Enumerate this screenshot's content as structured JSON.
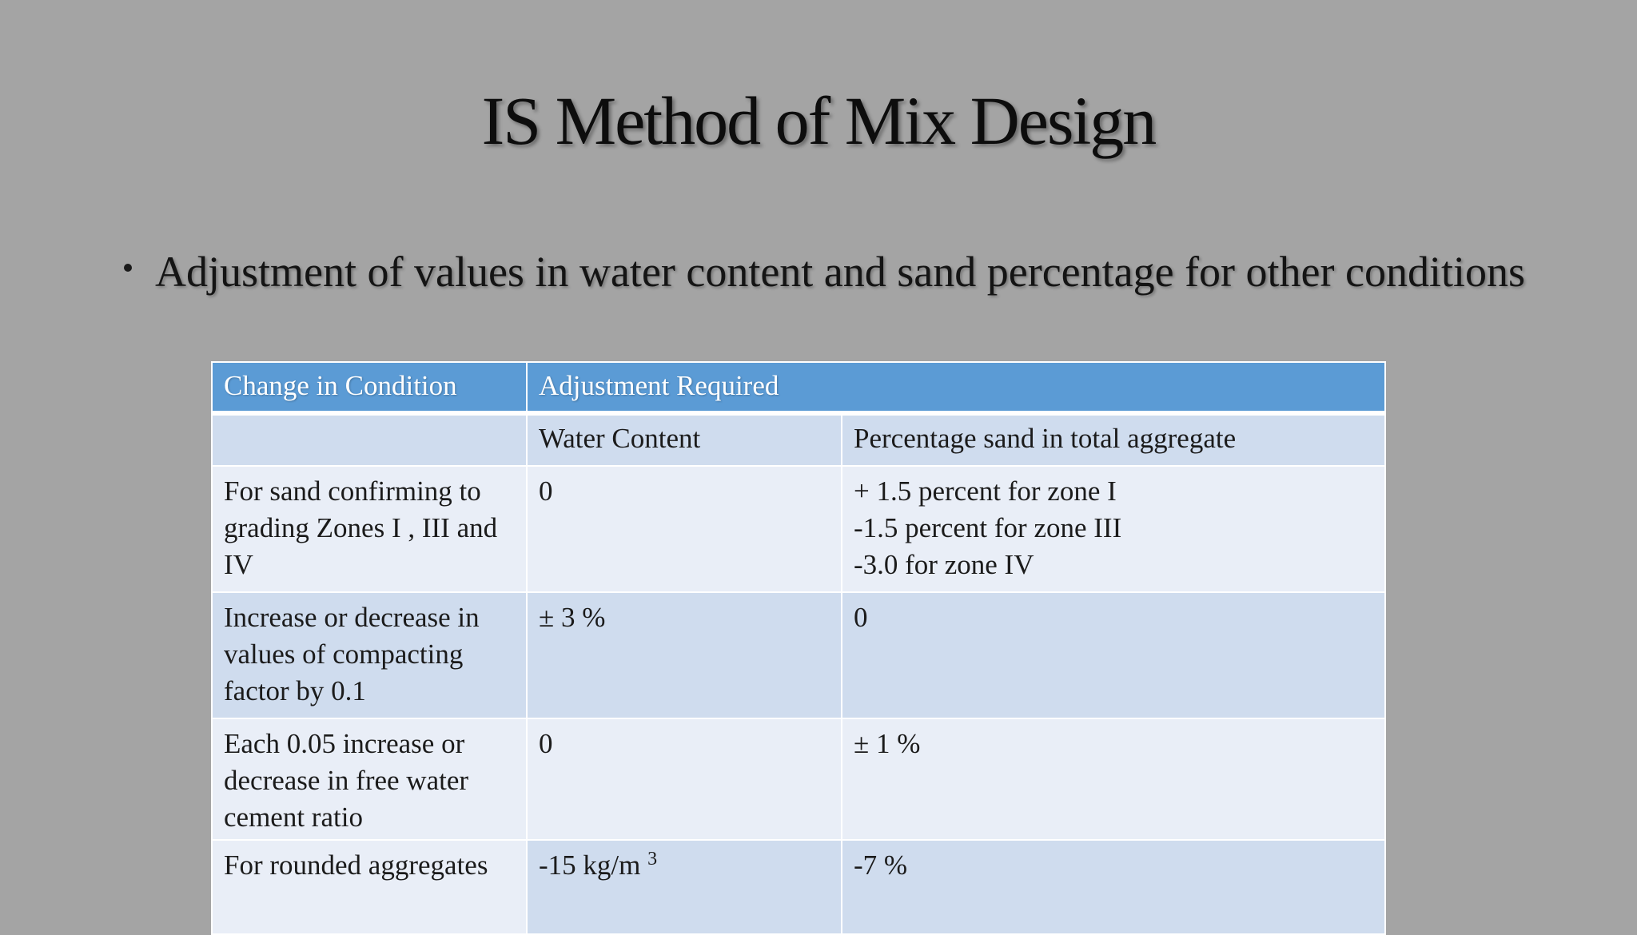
{
  "slide": {
    "title": "IS Method of Mix Design",
    "bullet": "Adjustment of values in water content and sand percentage for other conditions"
  },
  "table": {
    "header": {
      "col1": "Change in Condition",
      "col2": "Adjustment Required"
    },
    "subheader": {
      "col1": "",
      "col2": "Water Content",
      "col3": "Percentage sand in total aggregate"
    },
    "rows": [
      {
        "condition": "For sand confirming to grading Zones I , III and IV",
        "water": "0",
        "sand_lines": [
          "+ 1.5 percent for zone I",
          "-1.5 percent for zone III",
          "-3.0 for zone IV"
        ]
      },
      {
        "condition": "Increase or decrease in values of compacting factor by  0.1",
        "water": "± 3 %",
        "sand": "0"
      },
      {
        "condition": "Each 0.05 increase or decrease in free water cement ratio",
        "water": "0",
        "sand": "±  1 %"
      },
      {
        "condition": "For rounded aggregates",
        "water_base": "-15 kg/m",
        "water_sup": "3",
        "sand": "-7 %"
      }
    ]
  },
  "colors": {
    "background": "#a4a4a4",
    "header": "#5b9bd5",
    "row_light": "#e9eef7",
    "row_dark": "#cfdcee"
  }
}
